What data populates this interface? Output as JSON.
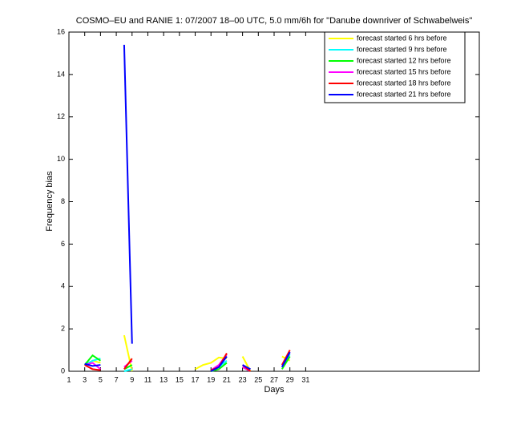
{
  "chart_data": {
    "type": "line",
    "title": "COSMO–EU and RANIE 1: 07/2007 18–00 UTC, 5.0 mm/6h for \"Danube downriver of Schwabelweis\"",
    "x_label": "Days",
    "y_label": "Frequency bias",
    "x": [
      1,
      2,
      3,
      4,
      5,
      6,
      7,
      8,
      9,
      10,
      11,
      12,
      13,
      14,
      15,
      16,
      17,
      18,
      19,
      20,
      21,
      22,
      23,
      24,
      25,
      26,
      27,
      28,
      29
    ],
    "series": [
      {
        "name": "forecast started 6 hrs before",
        "color": "#ffff00",
        "values": [
          null,
          null,
          0.3,
          0.5,
          0.4,
          null,
          null,
          1.7,
          0,
          null,
          null,
          null,
          null,
          null,
          null,
          null,
          0.1,
          0.3,
          0.4,
          0.65,
          0.6,
          null,
          0.7,
          0,
          null,
          null,
          null,
          0.7,
          0.5
        ]
      },
      {
        "name": "forecast started 9 hrs before",
        "color": "#00ffff",
        "values": [
          null,
          null,
          0.3,
          0.5,
          0.6,
          null,
          null,
          0,
          0.1,
          null,
          null,
          null,
          null,
          null,
          null,
          null,
          null,
          null,
          0,
          0.2,
          0.5,
          null,
          0.2,
          0,
          null,
          null,
          null,
          0.2,
          0.8
        ]
      },
      {
        "name": "forecast started 12 hrs before",
        "color": "#00ff00",
        "values": [
          null,
          null,
          0.3,
          0.75,
          0.5,
          null,
          null,
          0.1,
          0.3,
          null,
          null,
          null,
          null,
          null,
          null,
          null,
          null,
          null,
          0,
          0.1,
          0.4,
          null,
          0.2,
          0,
          null,
          null,
          null,
          0.1,
          0.7
        ]
      },
      {
        "name": "forecast started 15 hrs before",
        "color": "#ff00ff",
        "values": [
          null,
          null,
          0.3,
          0.4,
          0.1,
          null,
          null,
          0.2,
          0.5,
          null,
          null,
          null,
          null,
          null,
          null,
          null,
          null,
          null,
          0.05,
          0.3,
          0.8,
          null,
          0.2,
          0,
          null,
          null,
          null,
          0.2,
          0.9
        ]
      },
      {
        "name": "forecast started 18 hrs before",
        "color": "#ff0000",
        "values": [
          null,
          null,
          0.3,
          0.1,
          0.05,
          null,
          null,
          0.1,
          0.6,
          null,
          null,
          null,
          null,
          null,
          null,
          null,
          null,
          null,
          0.05,
          0.2,
          0.85,
          null,
          0.3,
          0,
          null,
          null,
          null,
          0.3,
          1.0
        ]
      },
      {
        "name": "forecast started 21 hrs before",
        "color": "#0000ff",
        "values": [
          null,
          null,
          0.35,
          0.25,
          0.3,
          null,
          null,
          15.4,
          1.3,
          null,
          null,
          null,
          null,
          null,
          null,
          null,
          null,
          null,
          0,
          0.2,
          0.7,
          null,
          0.3,
          0.1,
          null,
          null,
          null,
          0.2,
          0.9
        ]
      }
    ],
    "xlim": [
      1,
      53
    ],
    "ylim": [
      0,
      16
    ],
    "xticks": [
      1,
      3,
      5,
      7,
      9,
      11,
      13,
      15,
      17,
      19,
      21,
      23,
      25,
      27,
      29,
      31
    ],
    "yticks": [
      0,
      2,
      4,
      6,
      8,
      10,
      12,
      14,
      16
    ],
    "legend": "northeast"
  }
}
